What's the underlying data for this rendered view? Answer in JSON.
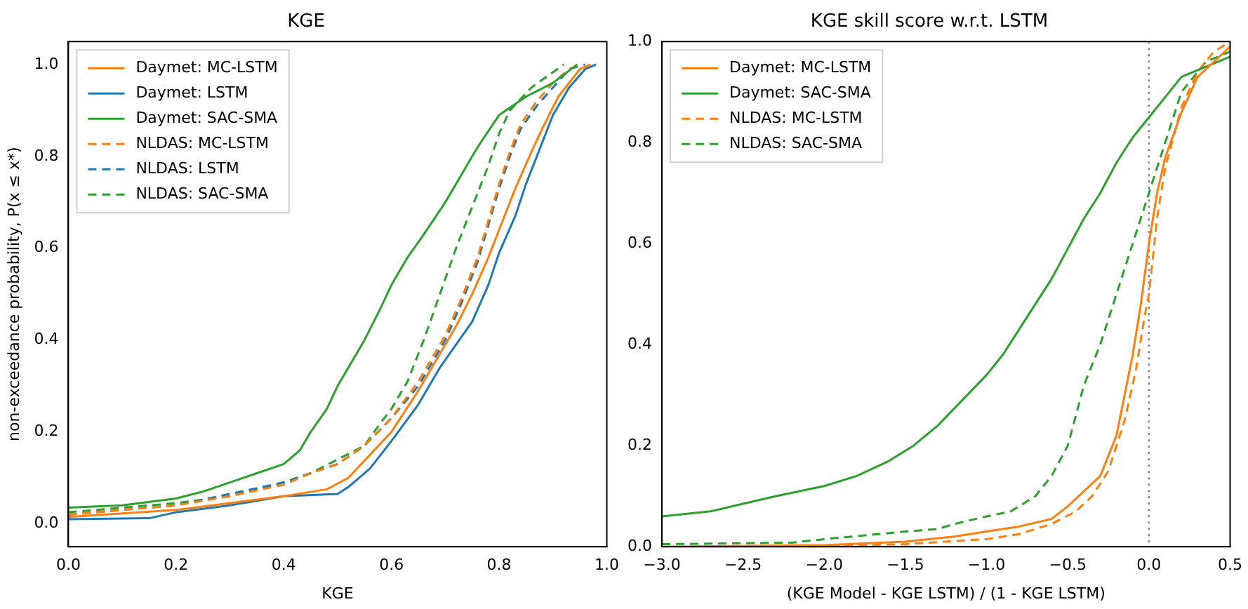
{
  "chart_data": [
    {
      "type": "line",
      "title": "KGE",
      "xlabel": "KGE",
      "ylabel": "non-exceedance probability, P(x ≤ x*)",
      "xlim": [
        0,
        1
      ],
      "ylim": [
        -0.05,
        1.05
      ],
      "xticks": [
        {
          "value": 0,
          "label": "0.0"
        },
        {
          "value": 0.2,
          "label": "0.2"
        },
        {
          "value": 0.4,
          "label": "0.4"
        },
        {
          "value": 0.6,
          "label": "0.6"
        },
        {
          "value": 0.8,
          "label": "0.8"
        },
        {
          "value": 1,
          "label": "1.0"
        }
      ],
      "yticks": [
        {
          "value": 0,
          "label": "0.0"
        },
        {
          "value": 0.2,
          "label": "0.2"
        },
        {
          "value": 0.4,
          "label": "0.4"
        },
        {
          "value": 0.6,
          "label": "0.6"
        },
        {
          "value": 0.8,
          "label": "0.8"
        },
        {
          "value": 1,
          "label": "1.0"
        }
      ],
      "grid": false,
      "legend": "top left",
      "marker": "none",
      "series": [
        {
          "name": "Daymet: MC-LSTM",
          "color": "#ff7f0e",
          "line_style": "solid",
          "x": [
            0,
            0.2,
            0.3,
            0.4,
            0.48,
            0.52,
            0.56,
            0.6,
            0.65,
            0.69,
            0.72,
            0.75,
            0.78,
            0.8,
            0.83,
            0.86,
            0.88,
            0.91,
            0.95,
            0.97
          ],
          "values": [
            0.015,
            0.03,
            0.045,
            0.06,
            0.075,
            0.1,
            0.15,
            0.2,
            0.29,
            0.37,
            0.43,
            0.5,
            0.58,
            0.64,
            0.73,
            0.81,
            0.86,
            0.93,
            0.99,
            1.0
          ]
        },
        {
          "name": "Daymet: LSTM",
          "color": "#1f77b4",
          "line_style": "solid",
          "x": [
            0,
            0.15,
            0.2,
            0.3,
            0.4,
            0.5,
            0.52,
            0.56,
            0.6,
            0.65,
            0.69,
            0.72,
            0.75,
            0.78,
            0.8,
            0.83,
            0.85,
            0.88,
            0.9,
            0.93,
            0.96,
            0.98
          ],
          "values": [
            0.01,
            0.012,
            0.025,
            0.04,
            0.06,
            0.065,
            0.08,
            0.12,
            0.18,
            0.26,
            0.34,
            0.39,
            0.44,
            0.52,
            0.59,
            0.67,
            0.74,
            0.83,
            0.89,
            0.95,
            0.99,
            1.0
          ]
        },
        {
          "name": "Daymet: SAC-SMA",
          "color": "#2ca02c",
          "line_style": "solid",
          "x": [
            0,
            0.1,
            0.2,
            0.25,
            0.3,
            0.35,
            0.4,
            0.43,
            0.45,
            0.48,
            0.5,
            0.52,
            0.55,
            0.58,
            0.6,
            0.63,
            0.66,
            0.7,
            0.73,
            0.76,
            0.8,
            0.85,
            0.9,
            0.945
          ],
          "values": [
            0.035,
            0.04,
            0.055,
            0.07,
            0.09,
            0.11,
            0.13,
            0.16,
            0.2,
            0.25,
            0.3,
            0.34,
            0.4,
            0.47,
            0.52,
            0.58,
            0.63,
            0.7,
            0.76,
            0.82,
            0.89,
            0.93,
            0.96,
            1.0
          ]
        },
        {
          "name": "NLDAS: MC-LSTM",
          "color": "#ff7f0e",
          "line_style": "dashed",
          "x": [
            0,
            0.2,
            0.3,
            0.4,
            0.45,
            0.5,
            0.55,
            0.6,
            0.65,
            0.7,
            0.73,
            0.76,
            0.78,
            0.8,
            0.82,
            0.84,
            0.87,
            0.9,
            0.93,
            0.95
          ],
          "values": [
            0.02,
            0.04,
            0.06,
            0.085,
            0.11,
            0.13,
            0.17,
            0.23,
            0.31,
            0.41,
            0.49,
            0.58,
            0.66,
            0.74,
            0.81,
            0.87,
            0.92,
            0.96,
            0.99,
            1.0
          ]
        },
        {
          "name": "NLDAS: LSTM",
          "color": "#1f77b4",
          "line_style": "dashed",
          "x": [
            0,
            0.2,
            0.3,
            0.4,
            0.45,
            0.5,
            0.55,
            0.6,
            0.65,
            0.7,
            0.73,
            0.76,
            0.78,
            0.8,
            0.82,
            0.84,
            0.87,
            0.9,
            0.93,
            0.96
          ],
          "values": [
            0.02,
            0.04,
            0.065,
            0.09,
            0.11,
            0.13,
            0.17,
            0.23,
            0.3,
            0.4,
            0.48,
            0.57,
            0.65,
            0.73,
            0.8,
            0.86,
            0.91,
            0.95,
            0.99,
            1.0
          ]
        },
        {
          "name": "NLDAS: SAC-SMA",
          "color": "#2ca02c",
          "line_style": "dashed",
          "x": [
            0,
            0.2,
            0.3,
            0.4,
            0.45,
            0.5,
            0.55,
            0.58,
            0.6,
            0.63,
            0.66,
            0.69,
            0.72,
            0.75,
            0.78,
            0.8,
            0.82,
            0.86,
            0.92
          ],
          "values": [
            0.025,
            0.045,
            0.06,
            0.09,
            0.11,
            0.14,
            0.17,
            0.22,
            0.25,
            0.31,
            0.4,
            0.5,
            0.6,
            0.69,
            0.78,
            0.85,
            0.9,
            0.95,
            1.0
          ]
        }
      ]
    },
    {
      "type": "line",
      "title": "KGE skill score w.r.t. LSTM",
      "xlabel": "(KGE Model - KGE LSTM) / (1 - KGE LSTM)",
      "xlim": [
        -3,
        0.5
      ],
      "ylim": [
        0,
        1
      ],
      "xticks": [
        {
          "value": -3,
          "label": "−3.0"
        },
        {
          "value": -2.5,
          "label": "−2.5"
        },
        {
          "value": -2,
          "label": "−2.0"
        },
        {
          "value": -1.5,
          "label": "−1.5"
        },
        {
          "value": -1,
          "label": "−1.0"
        },
        {
          "value": -0.5,
          "label": "−0.5"
        },
        {
          "value": 0,
          "label": "0.0"
        },
        {
          "value": 0.5,
          "label": "0.5"
        }
      ],
      "yticks": [
        {
          "value": 0,
          "label": "0.0"
        },
        {
          "value": 0.2,
          "label": "0.2"
        },
        {
          "value": 0.4,
          "label": "0.4"
        },
        {
          "value": 0.6,
          "label": "0.6"
        },
        {
          "value": 0.8,
          "label": "0.8"
        },
        {
          "value": 1,
          "label": "1.0"
        }
      ],
      "grid": false,
      "legend": "top left",
      "marker": "none",
      "ref_lines": [
        {
          "axis": "x",
          "value": 0,
          "color": "#808080",
          "line_style": "dotted"
        }
      ],
      "series": [
        {
          "name": "Daymet: MC-LSTM",
          "color": "#ff7f0e",
          "line_style": "solid",
          "x": [
            -3,
            -2,
            -1.5,
            -1.2,
            -1,
            -0.8,
            -0.6,
            -0.5,
            -0.4,
            -0.3,
            -0.2,
            -0.15,
            -0.1,
            -0.05,
            0,
            0.05,
            0.1,
            0.2,
            0.3,
            0.4,
            0.5
          ],
          "values": [
            0,
            0.003,
            0.01,
            0.02,
            0.03,
            0.04,
            0.055,
            0.08,
            0.11,
            0.14,
            0.22,
            0.3,
            0.38,
            0.48,
            0.6,
            0.7,
            0.77,
            0.86,
            0.93,
            0.96,
            0.99
          ]
        },
        {
          "name": "Daymet: SAC-SMA",
          "color": "#2ca02c",
          "line_style": "solid",
          "x": [
            -3,
            -2.7,
            -2.5,
            -2.3,
            -2,
            -1.8,
            -1.6,
            -1.45,
            -1.3,
            -1.15,
            -1,
            -0.9,
            -0.8,
            -0.7,
            -0.6,
            -0.5,
            -0.4,
            -0.3,
            -0.2,
            -0.1,
            0,
            0.1,
            0.2,
            0.35,
            0.5
          ],
          "values": [
            0.06,
            0.07,
            0.085,
            0.1,
            0.12,
            0.14,
            0.17,
            0.2,
            0.24,
            0.29,
            0.34,
            0.38,
            0.43,
            0.48,
            0.53,
            0.59,
            0.65,
            0.7,
            0.76,
            0.81,
            0.85,
            0.89,
            0.93,
            0.95,
            0.97
          ]
        },
        {
          "name": "NLDAS: MC-LSTM",
          "color": "#ff7f0e",
          "line_style": "dashed",
          "x": [
            -3,
            -2,
            -1.5,
            -1,
            -0.8,
            -0.6,
            -0.45,
            -0.35,
            -0.25,
            -0.15,
            -0.08,
            -0.03,
            0,
            0.05,
            0.1,
            0.2,
            0.3,
            0.4,
            0.5
          ],
          "values": [
            0,
            0.001,
            0.005,
            0.015,
            0.025,
            0.045,
            0.07,
            0.1,
            0.15,
            0.25,
            0.35,
            0.45,
            0.5,
            0.65,
            0.75,
            0.87,
            0.94,
            0.98,
            1.0
          ]
        },
        {
          "name": "NLDAS: SAC-SMA",
          "color": "#2ca02c",
          "line_style": "dashed",
          "x": [
            -3,
            -2.2,
            -2,
            -1.5,
            -1.3,
            -1.2,
            -1,
            -0.85,
            -0.7,
            -0.6,
            -0.5,
            -0.45,
            -0.4,
            -0.3,
            -0.25,
            -0.2,
            -0.1,
            0,
            0.1,
            0.2,
            0.35,
            0.5
          ],
          "values": [
            0.005,
            0.008,
            0.015,
            0.03,
            0.035,
            0.045,
            0.06,
            0.07,
            0.1,
            0.14,
            0.2,
            0.26,
            0.32,
            0.4,
            0.45,
            0.5,
            0.6,
            0.7,
            0.8,
            0.9,
            0.96,
            0.98
          ]
        }
      ]
    }
  ]
}
